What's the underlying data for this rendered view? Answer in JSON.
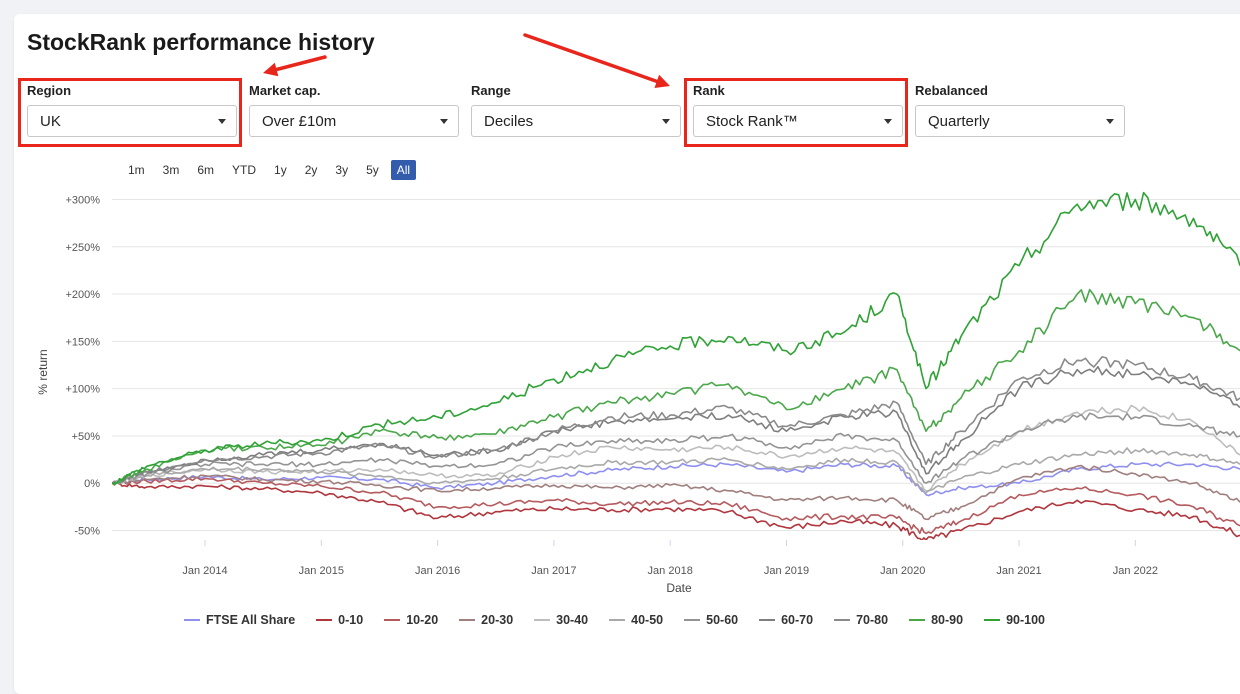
{
  "page": {
    "title": "StockRank performance history"
  },
  "filters": [
    {
      "id": "region",
      "label": "Region",
      "value": "UK",
      "highlighted": true
    },
    {
      "id": "market-cap",
      "label": "Market cap.",
      "value": "Over £10m",
      "highlighted": false
    },
    {
      "id": "range",
      "label": "Range",
      "value": "Deciles",
      "highlighted": false
    },
    {
      "id": "rank",
      "label": "Rank",
      "value": "Stock Rank™",
      "highlighted": true
    },
    {
      "id": "rebalanced",
      "label": "Rebalanced",
      "value": "Quarterly",
      "highlighted": false
    }
  ],
  "range_buttons": [
    {
      "label": "1m",
      "active": false
    },
    {
      "label": "3m",
      "active": false
    },
    {
      "label": "6m",
      "active": false
    },
    {
      "label": "YTD",
      "active": false
    },
    {
      "label": "1y",
      "active": false
    },
    {
      "label": "2y",
      "active": false
    },
    {
      "label": "3y",
      "active": false
    },
    {
      "label": "5y",
      "active": false
    },
    {
      "label": "All",
      "active": true
    }
  ],
  "annotation_color": "#e8261c",
  "chart_data": {
    "type": "line",
    "title": "",
    "xlabel": "Date",
    "ylabel": "% return",
    "ylim": [
      -60,
      310
    ],
    "xlim": [
      2013.2,
      2022.9
    ],
    "y_ticks": [
      {
        "value": 300,
        "label": "+300%"
      },
      {
        "value": 250,
        "label": "+250%"
      },
      {
        "value": 200,
        "label": "+200%"
      },
      {
        "value": 150,
        "label": "+150%"
      },
      {
        "value": 100,
        "label": "+100%"
      },
      {
        "value": 50,
        "label": "+50%"
      },
      {
        "value": 0,
        "label": "0%"
      },
      {
        "value": -50,
        "label": "-50%"
      }
    ],
    "x_ticks": [
      {
        "value": 2014.0,
        "label": "Jan 2014"
      },
      {
        "value": 2015.0,
        "label": "Jan 2015"
      },
      {
        "value": 2016.0,
        "label": "Jan 2016"
      },
      {
        "value": 2017.0,
        "label": "Jan 2017"
      },
      {
        "value": 2018.0,
        "label": "Jan 2018"
      },
      {
        "value": 2019.0,
        "label": "Jan 2019"
      },
      {
        "value": 2020.0,
        "label": "Jan 2020"
      },
      {
        "value": 2021.0,
        "label": "Jan 2021"
      },
      {
        "value": 2022.0,
        "label": "Jan 2022"
      }
    ],
    "grid": true,
    "legend_position": "bottom",
    "x": [
      2013.2,
      2013.5,
      2014.0,
      2014.5,
      2015.0,
      2015.5,
      2016.0,
      2016.5,
      2017.0,
      2017.5,
      2018.0,
      2018.5,
      2019.0,
      2019.5,
      2019.95,
      2020.2,
      2020.5,
      2021.0,
      2021.5,
      2022.0,
      2022.5,
      2022.9
    ],
    "series": [
      {
        "name": "FTSE All Share",
        "color": "#8f8ff0",
        "values": [
          0,
          4,
          7,
          4,
          6,
          4,
          -5,
          0,
          8,
          14,
          18,
          20,
          12,
          20,
          18,
          -12,
          -5,
          0,
          15,
          20,
          20,
          15
        ]
      },
      {
        "name": "0-10",
        "color": "#b0353d",
        "values": [
          0,
          -4,
          -3,
          -6,
          -10,
          -20,
          -37,
          -30,
          -27,
          -28,
          -27,
          -30,
          -47,
          -40,
          -45,
          -60,
          -50,
          -30,
          -18,
          -28,
          -35,
          -55
        ]
      },
      {
        "name": "10-20",
        "color": "#b55a5e",
        "values": [
          0,
          2,
          5,
          0,
          -3,
          -10,
          -25,
          -22,
          -18,
          -22,
          -20,
          -22,
          -37,
          -35,
          -37,
          -53,
          -40,
          -12,
          -5,
          -12,
          -25,
          -45
        ]
      },
      {
        "name": "20-30",
        "color": "#a07f7f",
        "values": [
          0,
          4,
          8,
          4,
          2,
          -2,
          -8,
          -5,
          -2,
          -5,
          -2,
          -8,
          -18,
          -15,
          -18,
          -38,
          -25,
          5,
          18,
          10,
          0,
          -20
        ]
      },
      {
        "name": "30-40",
        "color": "#bdbdbd",
        "values": [
          0,
          8,
          15,
          12,
          12,
          15,
          8,
          8,
          28,
          38,
          35,
          38,
          28,
          38,
          32,
          -8,
          20,
          55,
          75,
          80,
          65,
          30
        ]
      },
      {
        "name": "40-50",
        "color": "#a9a9a9",
        "values": [
          0,
          8,
          15,
          15,
          12,
          8,
          0,
          5,
          15,
          22,
          22,
          25,
          15,
          25,
          22,
          -10,
          5,
          20,
          30,
          35,
          30,
          20
        ]
      },
      {
        "name": "50-60",
        "color": "#949494",
        "values": [
          0,
          10,
          20,
          20,
          20,
          25,
          18,
          20,
          38,
          45,
          45,
          50,
          38,
          50,
          45,
          0,
          25,
          55,
          70,
          70,
          60,
          50
        ]
      },
      {
        "name": "60-70",
        "color": "#7e7e7e",
        "values": [
          0,
          12,
          25,
          30,
          35,
          42,
          30,
          35,
          55,
          65,
          68,
          72,
          55,
          70,
          75,
          10,
          45,
          100,
          120,
          115,
          105,
          80
        ]
      },
      {
        "name": "70-80",
        "color": "#8a8a8a",
        "values": [
          0,
          12,
          25,
          28,
          32,
          40,
          28,
          35,
          55,
          70,
          72,
          80,
          60,
          72,
          85,
          20,
          55,
          110,
          130,
          125,
          110,
          90
        ]
      },
      {
        "name": "80-90",
        "color": "#4aa84a",
        "values": [
          0,
          15,
          35,
          38,
          40,
          55,
          48,
          52,
          70,
          85,
          95,
          105,
          78,
          100,
          120,
          55,
          90,
          140,
          200,
          190,
          175,
          140
        ]
      },
      {
        "name": "90-100",
        "color": "#2fa236",
        "values": [
          0,
          18,
          35,
          42,
          45,
          62,
          70,
          85,
          110,
          130,
          145,
          155,
          140,
          160,
          200,
          100,
          155,
          230,
          295,
          300,
          280,
          230
        ]
      }
    ]
  }
}
